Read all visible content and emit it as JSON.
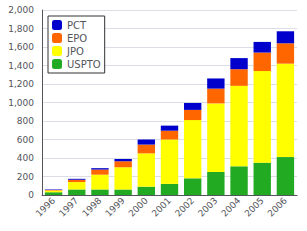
{
  "chart_data": {
    "type": "bar",
    "stacked": true,
    "categories": [
      "1996",
      "1997",
      "1998",
      "1999",
      "2000",
      "2001",
      "2002",
      "2003",
      "2004",
      "2005",
      "2006"
    ],
    "series": [
      {
        "name": "USPTO",
        "color": "#22aa22",
        "values": [
          30,
          60,
          60,
          60,
          90,
          120,
          180,
          250,
          310,
          350,
          410
        ]
      },
      {
        "name": "JPO",
        "color": "#ffff00",
        "values": [
          20,
          80,
          160,
          240,
          360,
          480,
          630,
          740,
          870,
          990,
          1010
        ]
      },
      {
        "name": "EPO",
        "color": "#ff6600",
        "values": [
          5,
          25,
          55,
          65,
          95,
          95,
          110,
          160,
          180,
          200,
          220
        ]
      },
      {
        "name": "PCT",
        "color": "#0000cc",
        "values": [
          5,
          10,
          15,
          25,
          55,
          55,
          75,
          110,
          120,
          115,
          130
        ]
      }
    ],
    "ylim": [
      0,
      2000
    ],
    "yticks": [
      0,
      200,
      400,
      600,
      800,
      1000,
      1200,
      1400,
      1600,
      1800,
      2000
    ],
    "grid": true,
    "legend": "upper left"
  }
}
